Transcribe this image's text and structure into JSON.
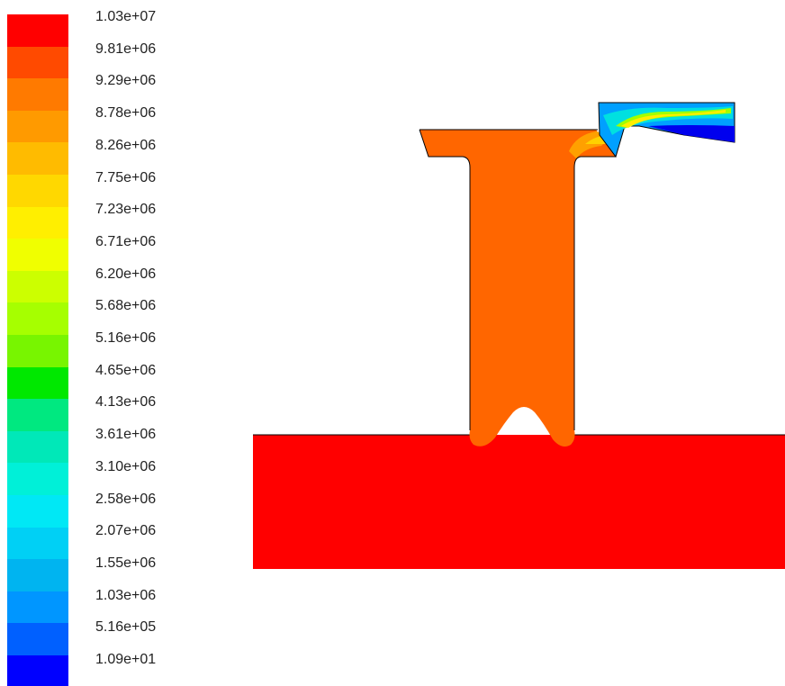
{
  "legend": {
    "labels": [
      "1.03e+07",
      "9.81e+06",
      "9.29e+06",
      "8.78e+06",
      "8.26e+06",
      "7.75e+06",
      "7.23e+06",
      "6.71e+06",
      "6.20e+06",
      "5.68e+06",
      "5.16e+06",
      "4.65e+06",
      "4.13e+06",
      "3.61e+06",
      "3.10e+06",
      "2.58e+06",
      "2.07e+06",
      "1.55e+06",
      "1.03e+06",
      "5.16e+05",
      "1.09e+01"
    ],
    "colors": [
      "#ff0000",
      "#ff4a00",
      "#ff7a00",
      "#ff9a00",
      "#ffbb00",
      "#ffd800",
      "#ffef00",
      "#f0ff00",
      "#ccff00",
      "#a6ff00",
      "#78f500",
      "#00e800",
      "#00e880",
      "#00e8b8",
      "#00f0d8",
      "#00e8f5",
      "#00d0f5",
      "#00b4f0",
      "#0096ff",
      "#0060ff",
      "#0000ff"
    ]
  },
  "contour": {
    "colors": {
      "outer_region": "#ff0000",
      "main_field": "#ff6600",
      "outline": "#000000"
    }
  }
}
